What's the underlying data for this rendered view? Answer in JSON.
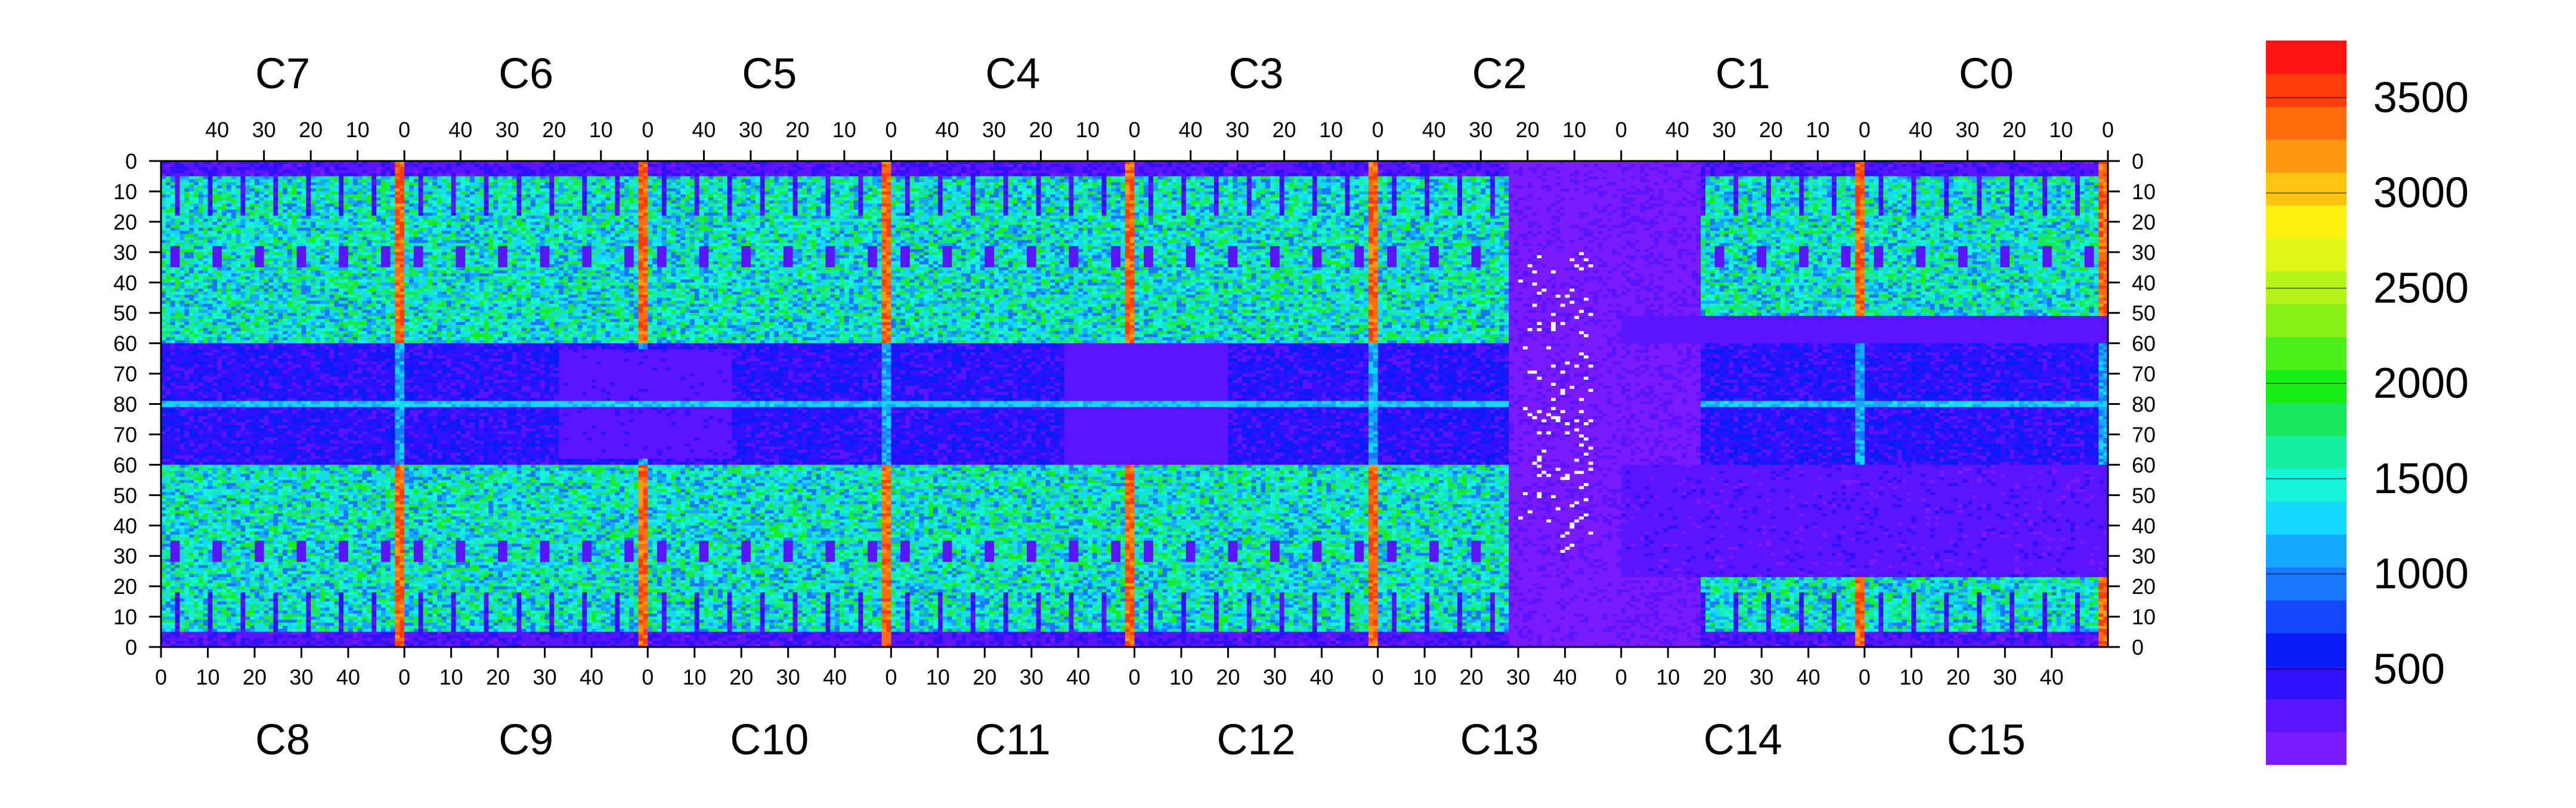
{
  "chart_data": {
    "type": "heatmap",
    "title": "",
    "xlabel": "",
    "ylabel": "",
    "top_chip_labels": [
      "C7",
      "C6",
      "C5",
      "C4",
      "C3",
      "C2",
      "C1",
      "C0"
    ],
    "bottom_chip_labels": [
      "C8",
      "C9",
      "C10",
      "C11",
      "C12",
      "C13",
      "C14",
      "C15"
    ],
    "top_column_tick_labels": [
      "40",
      "30",
      "20",
      "10",
      "0"
    ],
    "bottom_column_tick_labels": [
      "0",
      "10",
      "20",
      "30",
      "40"
    ],
    "left_row_tick_labels": [
      "0",
      "10",
      "20",
      "30",
      "40",
      "50",
      "60",
      "70",
      "80",
      "70",
      "60",
      "50",
      "40",
      "30",
      "20",
      "10",
      "0"
    ],
    "right_row_tick_labels": [
      "0",
      "10",
      "20",
      "30",
      "40",
      "50",
      "60",
      "70",
      "80",
      "70",
      "60",
      "50",
      "40",
      "30",
      "20",
      "10",
      "0"
    ],
    "chip_columns": 52,
    "chip_rows": 80,
    "grid": false,
    "colorbar": {
      "min": 0,
      "max": 3800,
      "tick_values": [
        500,
        1000,
        1500,
        2000,
        2500,
        3000,
        3500
      ],
      "tick_labels": [
        "500",
        "1000",
        "1500",
        "2000",
        "2500",
        "3000",
        "3500"
      ],
      "placement": "right"
    },
    "palette": [
      "#7a1aff",
      "#5a14ff",
      "#2f10ff",
      "#0a1cf5",
      "#1348ff",
      "#1a78ff",
      "#16a8ff",
      "#14d8ff",
      "#18f2d8",
      "#14f0a0",
      "#18e860",
      "#16ee16",
      "#4cf01a",
      "#88f218",
      "#b4f418",
      "#e0f81a",
      "#fff212",
      "#ffc410",
      "#ff9a10",
      "#ff6c0c",
      "#ff3c0a",
      "#ff1414"
    ],
    "blank_color": "#ffffff",
    "series_summary": [
      {
        "region": "top chips C7-C2, row 15-60",
        "typical_value": 1600
      },
      {
        "region": "top chips C7-C2, row 60-80",
        "typical_value": 500
      },
      {
        "region": "bottom chips C8-C13, row 60-15",
        "typical_value": 1500
      },
      {
        "region": "chip-edge columns (col 0)",
        "typical_value": 3500
      },
      {
        "region": "C1/C0 and C14/C15 below row 50",
        "typical_value": 250
      },
      {
        "region": "C13 right half",
        "typical_value": 120
      }
    ]
  }
}
